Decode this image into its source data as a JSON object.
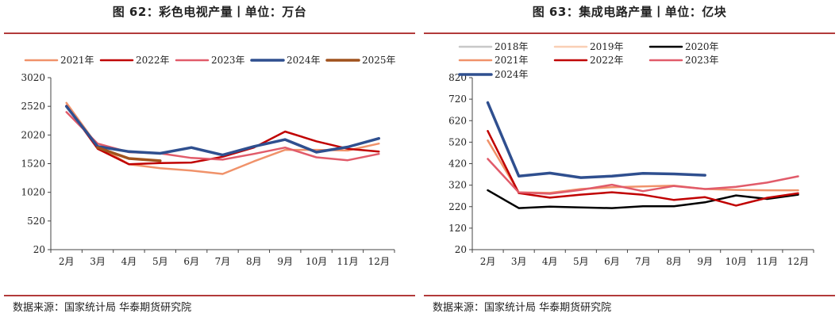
{
  "charts": [
    {
      "title": "图 62：彩色电视产量丨单位：万台",
      "source": "数据来源：国家统计局 华泰期货研究院"
    },
    {
      "title": "图 63：集成电路产量丨单位：亿块",
      "source": "数据来源：国家统计局 华泰期货研究院"
    }
  ],
  "chart_data": [
    {
      "type": "line",
      "title": "图 62：彩色电视产量丨单位：万台",
      "categories": [
        "2月",
        "3月",
        "4月",
        "5月",
        "6月",
        "7月",
        "8月",
        "9月",
        "10月",
        "11月",
        "12月"
      ],
      "yticks": [
        20,
        520,
        1020,
        1520,
        2020,
        2520,
        3020
      ],
      "ylim": [
        20,
        3020
      ],
      "legend_position": "top",
      "series": [
        {
          "name": "2021年",
          "color": "#f0926a",
          "width": 2.5,
          "values": [
            2580,
            1830,
            1510,
            1440,
            1400,
            1340,
            1560,
            1760,
            1760,
            1750,
            1870
          ]
        },
        {
          "name": "2022年",
          "color": "#c00000",
          "width": 2.5,
          "values": [
            2530,
            1780,
            1510,
            1530,
            1540,
            1640,
            1800,
            2080,
            1910,
            1780,
            1730
          ]
        },
        {
          "name": "2023年",
          "color": "#e15b6a",
          "width": 2.5,
          "values": [
            2420,
            1870,
            1720,
            1700,
            1620,
            1590,
            1690,
            1800,
            1630,
            1580,
            1690
          ]
        },
        {
          "name": "2024年",
          "color": "#2f4f8f",
          "width": 3.5,
          "values": [
            2520,
            1820,
            1730,
            1700,
            1800,
            1670,
            1820,
            1940,
            1720,
            1810,
            1960
          ]
        },
        {
          "name": "2025年",
          "color": "#a0521d",
          "width": 3.5,
          "values": [
            null,
            1800,
            1610,
            1570,
            null,
            null,
            null,
            null,
            null,
            null,
            null
          ]
        }
      ]
    },
    {
      "type": "line",
      "title": "图 63：集成电路产量丨单位：亿块",
      "categories": [
        "2月",
        "3月",
        "4月",
        "5月",
        "6月",
        "7月",
        "8月",
        "9月",
        "10月",
        "11月",
        "12月"
      ],
      "yticks": [
        20,
        120,
        220,
        320,
        420,
        520,
        620,
        720,
        820
      ],
      "ylim": [
        20,
        820
      ],
      "legend_position": "top",
      "series": [
        {
          "name": "2018年",
          "color": "#c8c8c8",
          "width": 2.5,
          "values": [
            null,
            null,
            null,
            null,
            null,
            null,
            null,
            null,
            null,
            null,
            null
          ]
        },
        {
          "name": "2019年",
          "color": "#f9cfb5",
          "width": 2.5,
          "values": [
            null,
            null,
            null,
            null,
            null,
            null,
            null,
            null,
            null,
            null,
            null
          ]
        },
        {
          "name": "2020年",
          "color": "#000000",
          "width": 2.5,
          "values": [
            296,
            213,
            220,
            216,
            213,
            222,
            222,
            240,
            272,
            256,
            276
          ]
        },
        {
          "name": "2021年",
          "color": "#f0926a",
          "width": 2.5,
          "values": [
            528,
            286,
            284,
            302,
            310,
            314,
            318,
            302,
            298,
            296,
            296
          ]
        },
        {
          "name": "2022年",
          "color": "#c00000",
          "width": 2.5,
          "values": [
            572,
            283,
            262,
            276,
            287,
            275,
            251,
            264,
            225,
            261,
            282
          ]
        },
        {
          "name": "2023年",
          "color": "#e15b6a",
          "width": 2.5,
          "values": [
            442,
            286,
            280,
            298,
            322,
            292,
            316,
            302,
            312,
            332,
            361
          ]
        },
        {
          "name": "2024年",
          "color": "#2f4f8f",
          "width": 3.5,
          "values": [
            704,
            362,
            376,
            355,
            362,
            375,
            372,
            366,
            null,
            null,
            null
          ]
        }
      ]
    }
  ]
}
